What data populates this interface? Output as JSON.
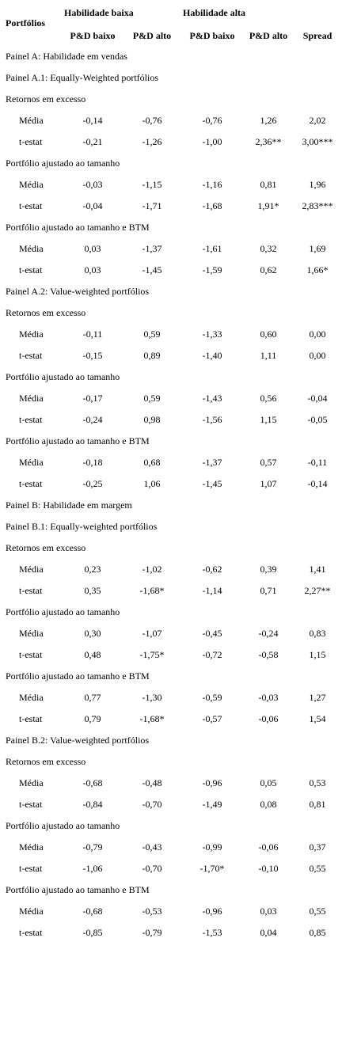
{
  "header": {
    "portfolios_label": "Portfólios",
    "group_low": "Habilidade baixa",
    "group_high": "Habilidade alta",
    "sub_cols": [
      "P&D baixo",
      "P&D alto",
      "P&D baixo",
      "P&D alto",
      "Spread"
    ]
  },
  "rows": [
    {
      "type": "section",
      "label": "Painel A: Habilidade em vendas"
    },
    {
      "type": "section",
      "label": "Painel A.1: Equally-Weighted portfólios"
    },
    {
      "type": "section",
      "label": "Retornos em excesso"
    },
    {
      "type": "stat",
      "label": "Média",
      "values": [
        "-0,14",
        "-0,76",
        "-0,76",
        "1,26",
        "2,02"
      ]
    },
    {
      "type": "stat",
      "label": "t-estat",
      "values": [
        "-0,21",
        "-1,26",
        "-1,00",
        "2,36**",
        "3,00***"
      ]
    },
    {
      "type": "section",
      "label": "Portfólio ajustado ao tamanho"
    },
    {
      "type": "stat",
      "label": "Média",
      "values": [
        "-0,03",
        "-1,15",
        "-1,16",
        "0,81",
        "1,96"
      ]
    },
    {
      "type": "stat",
      "label": "t-estat",
      "values": [
        "-0,04",
        "-1,71",
        "-1,68",
        "1,91*",
        "2,83***"
      ]
    },
    {
      "type": "section",
      "label": "Portfólio ajustado ao tamanho e BTM"
    },
    {
      "type": "stat",
      "label": "Média",
      "values": [
        "0,03",
        "-1,37",
        "-1,61",
        "0,32",
        "1,69"
      ]
    },
    {
      "type": "stat",
      "label": "t-estat",
      "values": [
        "0,03",
        "-1,45",
        "-1,59",
        "0,62",
        "1,66*"
      ]
    },
    {
      "type": "section",
      "label": "Painel A.2: Value-weighted portfólios"
    },
    {
      "type": "section",
      "label": "Retornos em excesso"
    },
    {
      "type": "stat",
      "label": "Média",
      "values": [
        "-0,11",
        "0,59",
        "-1,33",
        "0,60",
        "0,00"
      ]
    },
    {
      "type": "stat",
      "label": "t-estat",
      "values": [
        "-0,15",
        "0,89",
        "-1,40",
        "1,11",
        "0,00"
      ]
    },
    {
      "type": "section",
      "label": "Portfólio ajustado ao tamanho"
    },
    {
      "type": "stat",
      "label": "Média",
      "values": [
        "-0,17",
        "0,59",
        "-1,43",
        "0,56",
        "-0,04"
      ]
    },
    {
      "type": "stat",
      "label": "t-estat",
      "values": [
        "-0,24",
        "0,98",
        "-1,56",
        "1,15",
        "-0,05"
      ]
    },
    {
      "type": "section",
      "label": "Portfólio ajustado ao tamanho e BTM"
    },
    {
      "type": "stat",
      "label": "Média",
      "values": [
        "-0,18",
        "0,68",
        "-1,37",
        "0,57",
        "-0,11"
      ]
    },
    {
      "type": "stat",
      "label": "t-estat",
      "values": [
        "-0,25",
        "1,06",
        "-1,45",
        "1,07",
        "-0,14"
      ]
    },
    {
      "type": "section",
      "label": "Painel B: Habilidade em margem"
    },
    {
      "type": "section",
      "label": "Painel B.1: Equally-weighted portfólios"
    },
    {
      "type": "section",
      "label": "Retornos em excesso"
    },
    {
      "type": "stat",
      "label": "Média",
      "values": [
        "0,23",
        "-1,02",
        "-0,62",
        "0,39",
        "1,41"
      ]
    },
    {
      "type": "stat",
      "label": "t-estat",
      "values": [
        "0,35",
        "-1,68*",
        "-1,14",
        "0,71",
        "2,27**"
      ]
    },
    {
      "type": "section",
      "label": "Portfólio ajustado ao tamanho"
    },
    {
      "type": "stat",
      "label": "Média",
      "values": [
        "0,30",
        "-1,07",
        "-0,45",
        "-0,24",
        "0,83"
      ]
    },
    {
      "type": "stat",
      "label": "t-estat",
      "values": [
        "0,48",
        "-1,75*",
        "-0,72",
        "-0,58",
        "1,15"
      ]
    },
    {
      "type": "section",
      "label": "Portfólio ajustado ao tamanho e BTM"
    },
    {
      "type": "stat",
      "label": "Média",
      "values": [
        "0,77",
        "-1,30",
        "-0,59",
        "-0,03",
        "1,27"
      ]
    },
    {
      "type": "stat",
      "label": "t-estat",
      "values": [
        "0,79",
        "-1,68*",
        "-0,57",
        "-0,06",
        "1,54"
      ]
    },
    {
      "type": "section",
      "label": "Painel B.2: Value-weighted portfólios"
    },
    {
      "type": "section",
      "label": "Retornos em excesso"
    },
    {
      "type": "stat",
      "label": "Média",
      "values": [
        "-0,68",
        "-0,48",
        "-0,96",
        "0,05",
        "0,53"
      ]
    },
    {
      "type": "stat",
      "label": "t-estat",
      "values": [
        "-0,84",
        "-0,70",
        "-1,49",
        "0,08",
        "0,81"
      ]
    },
    {
      "type": "section",
      "label": "Portfólio ajustado ao tamanho"
    },
    {
      "type": "stat",
      "label": "Média",
      "values": [
        "-0,79",
        "-0,43",
        "-0,99",
        "-0,06",
        "0,37"
      ]
    },
    {
      "type": "stat",
      "label": "t-estat",
      "values": [
        "-1,06",
        "-0,70",
        "-1,70*",
        "-0,10",
        "0,55"
      ]
    },
    {
      "type": "section",
      "label": "Portfólio ajustado ao tamanho e BTM"
    },
    {
      "type": "stat",
      "label": "Média",
      "values": [
        "-0,68",
        "-0,53",
        "-0,96",
        "0,03",
        "0,55"
      ]
    },
    {
      "type": "stat",
      "label": "t-estat",
      "values": [
        "-0,85",
        "-0,79",
        "-1,53",
        "0,04",
        "0,85"
      ]
    }
  ]
}
